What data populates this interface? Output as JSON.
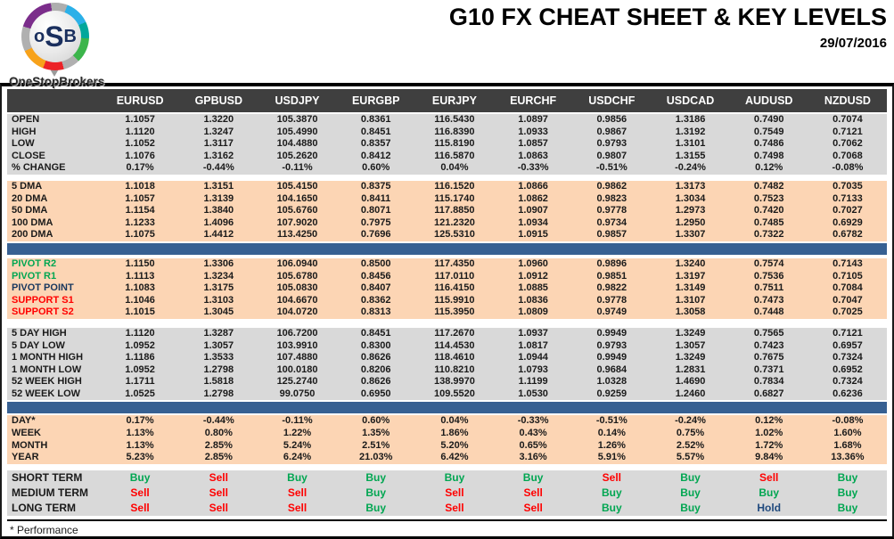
{
  "header": {
    "title": "G10 FX CHEAT SHEET & KEY LEVELS",
    "date": "29/07/2016",
    "logo": {
      "l1": "o",
      "l2": "S",
      "l3": "B",
      "brand": "OneStopBrokers"
    }
  },
  "columns": [
    "EURUSD",
    "GPBUSD",
    "USDJPY",
    "EURGBP",
    "EURJPY",
    "EURCHF",
    "USDCHF",
    "USDCAD",
    "AUDUSD",
    "NZDUSD"
  ],
  "sections": {
    "ohlc": {
      "rows": [
        {
          "label": "OPEN",
          "values": [
            "1.1057",
            "1.3220",
            "105.3870",
            "0.8361",
            "116.5430",
            "1.0897",
            "0.9856",
            "1.3186",
            "0.7490",
            "0.7074"
          ]
        },
        {
          "label": "HIGH",
          "values": [
            "1.1120",
            "1.3247",
            "105.4990",
            "0.8451",
            "116.8390",
            "1.0933",
            "0.9867",
            "1.3192",
            "0.7549",
            "0.7121"
          ]
        },
        {
          "label": "LOW",
          "values": [
            "1.1052",
            "1.3117",
            "104.4880",
            "0.8357",
            "115.8190",
            "1.0857",
            "0.9793",
            "1.3101",
            "0.7486",
            "0.7062"
          ]
        },
        {
          "label": "CLOSE",
          "values": [
            "1.1076",
            "1.3162",
            "105.2620",
            "0.8412",
            "116.5870",
            "1.0863",
            "0.9807",
            "1.3155",
            "0.7498",
            "0.7068"
          ]
        },
        {
          "label": "% CHANGE",
          "values": [
            "0.17%",
            "-0.44%",
            "-0.11%",
            "0.60%",
            "0.04%",
            "-0.33%",
            "-0.51%",
            "-0.24%",
            "0.12%",
            "-0.08%"
          ]
        }
      ]
    },
    "dma": {
      "rows": [
        {
          "label": "5 DMA",
          "values": [
            "1.1018",
            "1.3151",
            "105.4150",
            "0.8375",
            "116.1520",
            "1.0866",
            "0.9862",
            "1.3173",
            "0.7482",
            "0.7035"
          ]
        },
        {
          "label": "20 DMA",
          "values": [
            "1.1057",
            "1.3139",
            "104.1650",
            "0.8411",
            "115.1740",
            "1.0862",
            "0.9823",
            "1.3034",
            "0.7523",
            "0.7133"
          ]
        },
        {
          "label": "50 DMA",
          "values": [
            "1.1154",
            "1.3840",
            "105.6760",
            "0.8071",
            "117.8850",
            "1.0907",
            "0.9778",
            "1.2973",
            "0.7420",
            "0.7027"
          ]
        },
        {
          "label": "100 DMA",
          "values": [
            "1.1233",
            "1.4096",
            "107.9020",
            "0.7975",
            "121.2320",
            "1.0934",
            "0.9734",
            "1.2950",
            "0.7485",
            "0.6929"
          ]
        },
        {
          "label": "200 DMA",
          "values": [
            "1.1075",
            "1.4412",
            "113.4250",
            "0.7696",
            "125.5310",
            "1.0915",
            "0.9857",
            "1.3307",
            "0.7322",
            "0.6782"
          ]
        }
      ]
    },
    "pivots": {
      "rows": [
        {
          "label": "PIVOT R2",
          "label_color": "#00A651",
          "values": [
            "1.1150",
            "1.3306",
            "106.0940",
            "0.8500",
            "117.4350",
            "1.0960",
            "0.9896",
            "1.3240",
            "0.7574",
            "0.7143"
          ]
        },
        {
          "label": "PIVOT R1",
          "label_color": "#00A651",
          "values": [
            "1.1113",
            "1.3234",
            "105.6780",
            "0.8456",
            "117.0110",
            "1.0912",
            "0.9851",
            "1.3197",
            "0.7536",
            "0.7105"
          ]
        },
        {
          "label": "PIVOT POINT",
          "label_color": "#17375E",
          "values": [
            "1.1083",
            "1.3175",
            "105.0830",
            "0.8407",
            "116.4150",
            "1.0885",
            "0.9822",
            "1.3149",
            "0.7511",
            "0.7084"
          ]
        },
        {
          "label": "SUPPORT S1",
          "label_color": "#FF0000",
          "values": [
            "1.1046",
            "1.3103",
            "104.6670",
            "0.8362",
            "115.9910",
            "1.0836",
            "0.9778",
            "1.3107",
            "0.7473",
            "0.7047"
          ]
        },
        {
          "label": "SUPPORT S2",
          "label_color": "#FF0000",
          "values": [
            "1.1015",
            "1.3045",
            "104.0720",
            "0.8313",
            "115.3950",
            "1.0809",
            "0.9749",
            "1.3058",
            "0.7448",
            "0.7025"
          ]
        }
      ]
    },
    "ranges": {
      "rows": [
        {
          "label": "5 DAY HIGH",
          "values": [
            "1.1120",
            "1.3287",
            "106.7200",
            "0.8451",
            "117.2670",
            "1.0937",
            "0.9949",
            "1.3249",
            "0.7565",
            "0.7121"
          ]
        },
        {
          "label": "5 DAY LOW",
          "values": [
            "1.0952",
            "1.3057",
            "103.9910",
            "0.8300",
            "114.4530",
            "1.0817",
            "0.9793",
            "1.3057",
            "0.7423",
            "0.6957"
          ]
        },
        {
          "label": "1 MONTH HIGH",
          "values": [
            "1.1186",
            "1.3533",
            "107.4880",
            "0.8626",
            "118.4610",
            "1.0944",
            "0.9949",
            "1.3249",
            "0.7675",
            "0.7324"
          ]
        },
        {
          "label": "1 MONTH LOW",
          "values": [
            "1.0952",
            "1.2798",
            "100.0180",
            "0.8206",
            "110.8210",
            "1.0793",
            "0.9684",
            "1.2831",
            "0.7371",
            "0.6952"
          ]
        },
        {
          "label": "52 WEEK HIGH",
          "values": [
            "1.1711",
            "1.5818",
            "125.2740",
            "0.8626",
            "138.9970",
            "1.1199",
            "1.0328",
            "1.4690",
            "0.7834",
            "0.7324"
          ]
        },
        {
          "label": "52 WEEK LOW",
          "values": [
            "1.0525",
            "1.2798",
            "99.0750",
            "0.6950",
            "109.5520",
            "1.0530",
            "0.9259",
            "1.2460",
            "0.6827",
            "0.6236"
          ]
        }
      ]
    },
    "performance": {
      "rows": [
        {
          "label": "DAY*",
          "values": [
            "0.17%",
            "-0.44%",
            "-0.11%",
            "0.60%",
            "0.04%",
            "-0.33%",
            "-0.51%",
            "-0.24%",
            "0.12%",
            "-0.08%"
          ]
        },
        {
          "label": "WEEK",
          "values": [
            "1.13%",
            "0.80%",
            "1.22%",
            "1.35%",
            "1.86%",
            "0.43%",
            "0.14%",
            "0.75%",
            "1.02%",
            "1.60%"
          ]
        },
        {
          "label": "MONTH",
          "values": [
            "1.13%",
            "2.85%",
            "5.24%",
            "2.51%",
            "5.20%",
            "0.65%",
            "1.26%",
            "2.52%",
            "1.72%",
            "1.68%"
          ]
        },
        {
          "label": "YEAR",
          "values": [
            "5.23%",
            "2.85%",
            "6.24%",
            "21.03%",
            "6.42%",
            "3.16%",
            "5.91%",
            "5.57%",
            "9.84%",
            "13.36%"
          ]
        }
      ]
    },
    "signals": {
      "rows": [
        {
          "label": "SHORT TERM",
          "values": [
            "Buy",
            "Sell",
            "Buy",
            "Buy",
            "Buy",
            "Buy",
            "Sell",
            "Buy",
            "Sell",
            "Buy"
          ]
        },
        {
          "label": "MEDIUM TERM",
          "values": [
            "Sell",
            "Sell",
            "Sell",
            "Buy",
            "Sell",
            "Sell",
            "Buy",
            "Buy",
            "Buy",
            "Buy"
          ]
        },
        {
          "label": "LONG TERM",
          "values": [
            "Sell",
            "Sell",
            "Sell",
            "Buy",
            "Sell",
            "Sell",
            "Buy",
            "Buy",
            "Hold",
            "Buy"
          ]
        }
      ]
    },
    "footer_note": "* Performance"
  },
  "colors": {
    "buy": "#00A651",
    "sell": "#FF0000",
    "hold": "#1F497D",
    "band_gray": "#D9D9D9",
    "band_peach": "#FCD5B4",
    "divider_blue": "#376092",
    "header_bar": "#3F3F3F"
  }
}
